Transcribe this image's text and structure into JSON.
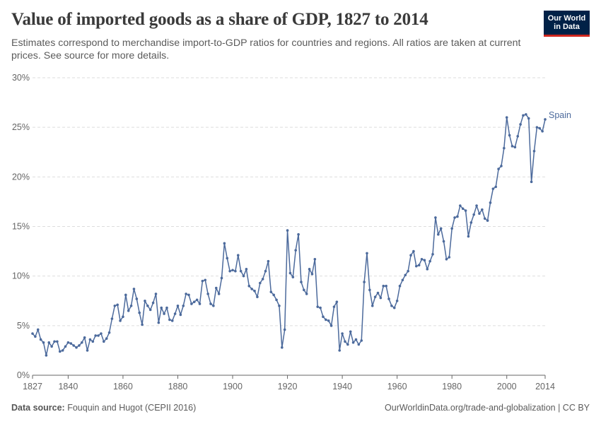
{
  "header": {
    "title": "Value of imported goods as a share of GDP, 1827 to 2014",
    "subtitle": "Estimates correspond to merchandise import-to-GDP ratios for countries and regions. All ratios are taken at current prices. See source for more details.",
    "logo_line1": "Our World",
    "logo_line2": "in Data"
  },
  "footer": {
    "source_label": "Data source:",
    "source_text": "Fouquin and Hugot (CEPII 2016)",
    "link_text": "OurWorldinData.org/trade-and-globalization | CC BY"
  },
  "colors": {
    "series": "#4c6a9c",
    "grid": "#dddddd",
    "axis": "#666666",
    "logo_bg": "#002147",
    "logo_accent": "#ce261e"
  },
  "chart_data": {
    "type": "line",
    "x_ticks": [
      "1827",
      "1840",
      "1860",
      "1880",
      "1900",
      "1920",
      "1940",
      "1960",
      "1980",
      "2000",
      "2014"
    ],
    "y_ticks": [
      "0%",
      "5%",
      "10%",
      "15%",
      "20%",
      "25%",
      "30%"
    ],
    "xlim": [
      1827,
      2014
    ],
    "ylim": [
      0,
      30
    ],
    "grid": "horizontal dashed",
    "series": [
      {
        "name": "Spain",
        "x_start": 1827,
        "values": [
          4.2,
          3.9,
          4.6,
          3.6,
          3.3,
          2.0,
          3.3,
          2.9,
          3.4,
          3.4,
          2.4,
          2.5,
          2.9,
          3.3,
          3.2,
          3.0,
          2.8,
          3.0,
          3.3,
          3.8,
          2.5,
          3.6,
          3.4,
          4.0,
          4.0,
          4.2,
          3.4,
          3.7,
          4.3,
          5.7,
          7.0,
          7.1,
          5.5,
          5.9,
          8.1,
          6.5,
          7.0,
          8.7,
          7.7,
          6.3,
          5.1,
          7.5,
          7.0,
          6.6,
          7.3,
          8.2,
          5.3,
          6.8,
          6.2,
          6.8,
          5.6,
          5.5,
          6.2,
          7.0,
          6.1,
          7.0,
          8.2,
          8.1,
          7.2,
          7.4,
          7.6,
          7.2,
          9.5,
          9.6,
          8.2,
          7.2,
          7.0,
          8.8,
          8.2,
          9.8,
          13.3,
          11.8,
          10.5,
          10.6,
          10.5,
          12.1,
          10.5,
          10.0,
          10.7,
          9.0,
          8.7,
          8.5,
          7.9,
          9.3,
          9.7,
          10.5,
          11.5,
          8.4,
          8.1,
          7.6,
          7.0,
          2.8,
          4.6,
          14.6,
          10.3,
          9.9,
          12.6,
          14.2,
          9.4,
          8.6,
          8.2,
          10.7,
          10.2,
          11.7,
          6.9,
          6.8,
          5.9,
          5.6,
          5.5,
          5.0,
          6.9,
          7.4,
          2.5,
          4.2,
          3.4,
          3.1,
          4.4,
          3.3,
          3.6,
          3.1,
          3.5,
          9.4,
          12.3,
          8.6,
          7.0,
          7.9,
          8.3,
          7.8,
          9.0,
          9.0,
          7.7,
          7.0,
          6.8,
          7.5,
          9.0,
          9.6,
          10.1,
          10.5,
          12.1,
          12.5,
          11.0,
          11.1,
          11.7,
          11.6,
          10.7,
          11.5,
          12.2,
          15.9,
          14.2,
          14.8,
          13.5,
          11.7,
          11.9,
          14.8,
          15.9,
          16.0,
          17.1,
          16.8,
          16.6,
          14.0,
          15.4,
          16.2,
          17.1,
          16.3,
          16.7,
          15.8,
          15.6,
          17.4,
          18.8,
          19.0,
          20.8,
          21.1,
          22.9,
          26.0,
          24.2,
          23.1,
          23.0,
          24.1,
          25.3,
          26.2,
          26.3,
          25.9,
          19.5,
          22.6,
          25.0,
          24.9,
          24.6,
          25.8
        ]
      }
    ]
  }
}
